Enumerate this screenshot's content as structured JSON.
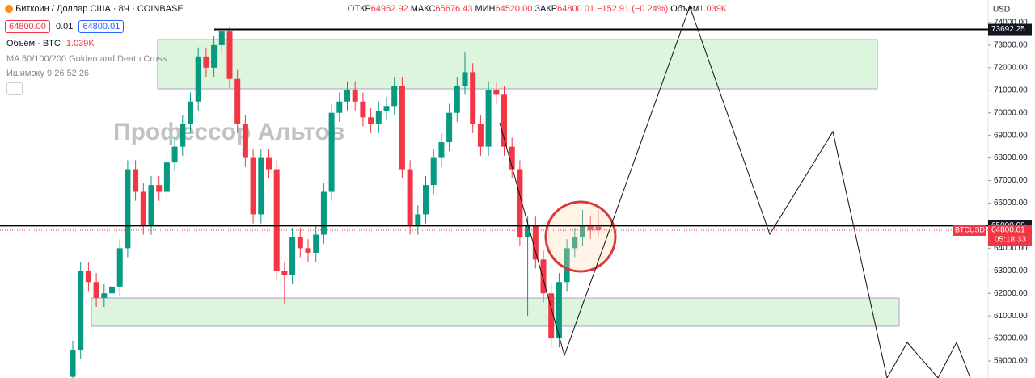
{
  "header": {
    "title": "Биткоин / Доллар США · 8Ч · COINBASE",
    "open_label": "ОТКР",
    "open": "64952.92",
    "high_label": "МАКС",
    "high": "65676.43",
    "low_label": "МИН",
    "low": "64520.00",
    "close_label": "ЗАКР",
    "close": "64800.01",
    "change": "−152.91 (−0.24%)",
    "volume_label": "Объём",
    "volume": "1.039K",
    "bid": "64800.00",
    "spread": "0.01",
    "ask": "64800.01"
  },
  "indicators": {
    "volume_label": "Объём · BTC",
    "volume": "1.039K",
    "ma": "MA 50/100/200 Golden and Death Cross",
    "ichimoku": "Ишимоку 9 26 52 26"
  },
  "watermark": "Профессор Альтов",
  "chart_data": {
    "type": "candlestick",
    "currency": "USD",
    "symbol": "BTCUSD",
    "countdown": "05:18:33",
    "up_color": "#089981",
    "down_color": "#f23645",
    "open": [
      58300,
      59500,
      63000,
      62500,
      61800,
      62000,
      62300,
      64000,
      67500,
      66500,
      65000,
      66800,
      66500,
      67800,
      68500,
      69500,
      70500,
      72500,
      72000,
      73000,
      73600,
      71500,
      69500,
      68000,
      65500,
      68000,
      67500,
      63000,
      62800,
      64500,
      64000,
      63800,
      64600,
      66500,
      70000,
      70500,
      71000,
      70500,
      69800,
      69500,
      70100,
      70300,
      71200,
      67500,
      65000,
      65500,
      66800,
      68000,
      68700,
      70000,
      71200,
      71800,
      69500,
      68500,
      71000,
      70800,
      68500,
      67500,
      64500,
      65000,
      63500,
      62000,
      60000,
      62500,
      64000,
      64500,
      65000,
      64952.92
    ],
    "high": [
      59900,
      63400,
      63400,
      62900,
      62400,
      62700,
      64400,
      67900,
      67900,
      66900,
      67200,
      67200,
      68200,
      68900,
      69900,
      70900,
      72900,
      72900,
      73400,
      73692.25,
      73800,
      71900,
      69900,
      68400,
      68400,
      68400,
      67900,
      63400,
      64900,
      64900,
      64400,
      65000,
      66900,
      70400,
      70900,
      71400,
      71400,
      70900,
      70200,
      70500,
      70700,
      71600,
      71600,
      67900,
      65900,
      67200,
      68400,
      69100,
      70400,
      71600,
      72700,
      72200,
      69900,
      71400,
      71400,
      71200,
      68900,
      67900,
      65400,
      65400,
      63900,
      62400,
      62900,
      64400,
      64900,
      65700,
      65400,
      65676.43
    ],
    "low": [
      57900,
      59100,
      62100,
      61400,
      61400,
      61600,
      61900,
      63600,
      66100,
      64600,
      64600,
      66100,
      66100,
      67400,
      68100,
      69100,
      70100,
      71600,
      71600,
      72600,
      71100,
      69100,
      67600,
      65100,
      65100,
      67100,
      62600,
      61500,
      62400,
      63600,
      63400,
      63400,
      64200,
      66100,
      69600,
      70100,
      70100,
      69400,
      69100,
      69100,
      69700,
      69900,
      67100,
      64600,
      64600,
      65100,
      66400,
      67600,
      68300,
      69600,
      70800,
      69100,
      68100,
      68100,
      70400,
      68100,
      67100,
      64100,
      61000,
      63100,
      61600,
      59600,
      59600,
      62100,
      63600,
      64100,
      64400,
      64520
    ],
    "close": [
      59500,
      63000,
      62500,
      61800,
      62000,
      62300,
      64000,
      67500,
      66500,
      65000,
      66800,
      66500,
      67800,
      68500,
      69500,
      70500,
      72500,
      72000,
      73000,
      73600,
      71500,
      69500,
      68000,
      65500,
      68000,
      67500,
      63000,
      62800,
      64500,
      64000,
      63800,
      64600,
      66500,
      70000,
      70500,
      71000,
      70500,
      69800,
      69500,
      70100,
      70300,
      71200,
      67500,
      65000,
      65500,
      66800,
      68000,
      68700,
      70000,
      71200,
      71800,
      69500,
      68500,
      71000,
      70800,
      68500,
      67500,
      64500,
      65000,
      63500,
      62000,
      60000,
      62500,
      64000,
      64500,
      65000,
      64800,
      64800.01
    ],
    "ylim": [
      58250,
      75000
    ],
    "yticks": [
      {
        "value": 59000,
        "label": "59000.00"
      },
      {
        "value": 60000,
        "label": "60000.00"
      },
      {
        "value": 61000,
        "label": "61000.00"
      },
      {
        "value": 62000,
        "label": "62000.00"
      },
      {
        "value": 63000,
        "label": "63000.00"
      },
      {
        "value": 64000,
        "label": "64000.00"
      },
      {
        "value": 65000,
        "label": "65000.00"
      },
      {
        "value": 66000,
        "label": "66000.00"
      },
      {
        "value": 67000,
        "label": "67000.00"
      },
      {
        "value": 68000,
        "label": "68000.00"
      },
      {
        "value": 69000,
        "label": "69000.00"
      },
      {
        "value": 70000,
        "label": "70000.00"
      },
      {
        "value": 71000,
        "label": "71000.00"
      },
      {
        "value": 72000,
        "label": "72000.00"
      },
      {
        "value": 73000,
        "label": "73000.00"
      },
      {
        "value": 74000,
        "label": "74000.00"
      }
    ],
    "price_lines": [
      {
        "value": 73692.25,
        "label": "73692.25"
      },
      {
        "value": 65000,
        "label": "65000.00"
      }
    ],
    "last_price": {
      "value": 64800.01,
      "label": "64800.01"
    }
  }
}
